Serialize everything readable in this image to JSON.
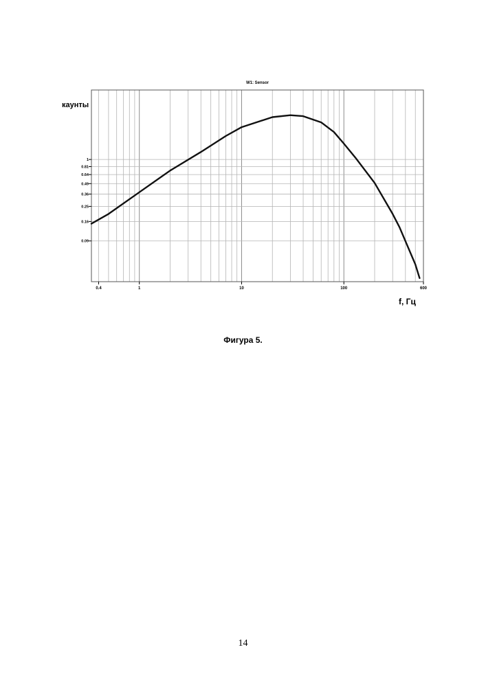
{
  "page": {
    "caption": "Фигура 5.",
    "page_number": "14"
  },
  "chart_data": {
    "type": "line",
    "title": "W1: Sensor",
    "ylabel": "каунты",
    "xlabel": "f, Гц",
    "x_scale": "log",
    "y_scale": "log",
    "xlim": [
      0.34,
      600
    ],
    "ylim": [
      0.027,
      7.8
    ],
    "grid": true,
    "line_color": "#111111",
    "grid_color": "#b4b4b4",
    "x_ticks": [
      {
        "value": 0.4,
        "label": "0.4"
      },
      {
        "value": 1,
        "label": "1"
      },
      {
        "value": 10,
        "label": "10"
      },
      {
        "value": 100,
        "label": "100"
      },
      {
        "value": 600,
        "label": "600"
      }
    ],
    "y_ticks": [
      {
        "value": 1,
        "label": "1"
      },
      {
        "value": 0.81,
        "label": "0.81"
      },
      {
        "value": 0.64,
        "label": "0.64"
      },
      {
        "value": 0.49,
        "label": "0.49"
      },
      {
        "value": 0.36,
        "label": "0.36"
      },
      {
        "value": 0.25,
        "label": "0.25"
      },
      {
        "value": 0.16,
        "label": "0.16"
      },
      {
        "value": 0.09,
        "label": "0.09"
      }
    ],
    "series": [
      {
        "x": [
          0.34,
          0.5,
          1,
          2,
          4,
          7,
          10,
          20,
          30,
          40,
          60,
          80,
          100,
          130,
          200,
          300,
          350,
          500,
          550
        ],
        "y": [
          0.15,
          0.2,
          0.38,
          0.72,
          1.25,
          2.0,
          2.6,
          3.5,
          3.7,
          3.6,
          3.0,
          2.25,
          1.6,
          1.05,
          0.5,
          0.2,
          0.135,
          0.045,
          0.03
        ]
      }
    ]
  }
}
